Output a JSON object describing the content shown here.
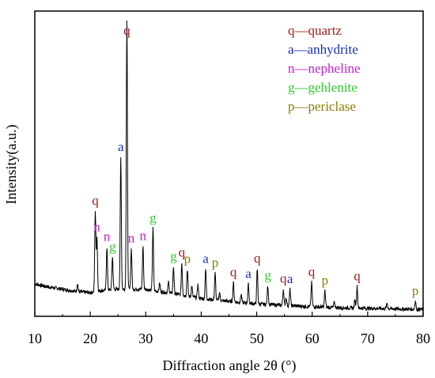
{
  "chart_data": {
    "type": "line",
    "title": "",
    "xlabel": "Diffraction angle 2θ (°)",
    "ylabel": "Intensity(a.u.)",
    "xlim": [
      10,
      80
    ],
    "ylim": [
      0,
      100
    ],
    "x_ticks": [
      10,
      20,
      30,
      40,
      50,
      60,
      70,
      80
    ],
    "x_tick_labels": [
      "10",
      "20",
      "30",
      "40",
      "50",
      "60",
      "70",
      "80"
    ],
    "grid": false,
    "legend_position": "top-right",
    "legend": [
      {
        "symbol": "q",
        "text": "q—quartz",
        "color": "#a0201a"
      },
      {
        "symbol": "a",
        "text": "a—anhydrite",
        "color": "#1a2db5"
      },
      {
        "symbol": "n",
        "text": "n—nepheline",
        "color": "#c21fc9"
      },
      {
        "symbol": "g",
        "text": "g—gehlenite",
        "color": "#2fcc2f"
      },
      {
        "symbol": "p",
        "text": "p—periclase",
        "color": "#8a7a00"
      }
    ],
    "background_intensity": [
      [
        10,
        11.5
      ],
      [
        12,
        10.5
      ],
      [
        15,
        9.5
      ],
      [
        18,
        8.5
      ],
      [
        20,
        8.2
      ],
      [
        22,
        9
      ],
      [
        25,
        9.5
      ],
      [
        28,
        9.5
      ],
      [
        30,
        9.5
      ],
      [
        33,
        8.5
      ],
      [
        36,
        7.5
      ],
      [
        40,
        6
      ],
      [
        45,
        5
      ],
      [
        50,
        4
      ],
      [
        55,
        3.5
      ],
      [
        60,
        3
      ],
      [
        65,
        2.6
      ],
      [
        70,
        2.4
      ],
      [
        75,
        2.2
      ],
      [
        80,
        2
      ]
    ],
    "peaks": [
      {
        "x": 20.9,
        "y": 30,
        "label": "q"
      },
      {
        "x": 21.2,
        "y": 20,
        "label": "n"
      },
      {
        "x": 23.0,
        "y": 16,
        "label": "n"
      },
      {
        "x": 24.0,
        "y": 12,
        "label": "g"
      },
      {
        "x": 25.5,
        "y": 49,
        "label": "a"
      },
      {
        "x": 26.6,
        "y": 100,
        "label": "q"
      },
      {
        "x": 27.4,
        "y": 15,
        "label": "n"
      },
      {
        "x": 29.5,
        "y": 16,
        "label": "n"
      },
      {
        "x": 31.3,
        "y": 23,
        "label": "g"
      },
      {
        "x": 35.0,
        "y": 10,
        "label": "g"
      },
      {
        "x": 36.5,
        "y": 12,
        "label": "q"
      },
      {
        "x": 37.5,
        "y": 10,
        "label": "p"
      },
      {
        "x": 40.8,
        "y": 11,
        "label": "a"
      },
      {
        "x": 42.5,
        "y": 10,
        "label": "p"
      },
      {
        "x": 45.8,
        "y": 7,
        "label": "q"
      },
      {
        "x": 48.5,
        "y": 7,
        "label": "a"
      },
      {
        "x": 50.1,
        "y": 13,
        "label": "q"
      },
      {
        "x": 52.0,
        "y": 7,
        "label": "g"
      },
      {
        "x": 54.8,
        "y": 6,
        "label": "q"
      },
      {
        "x": 56.0,
        "y": 6,
        "label": "a"
      },
      {
        "x": 59.9,
        "y": 9,
        "label": "q"
      },
      {
        "x": 62.3,
        "y": 6,
        "label": "p"
      },
      {
        "x": 68.1,
        "y": 8,
        "label": "q"
      },
      {
        "x": 78.6,
        "y": 3,
        "label": "p"
      }
    ],
    "minor_peaks": [
      {
        "x": 17.7,
        "y": 3
      },
      {
        "x": 32.5,
        "y": 3
      },
      {
        "x": 34.1,
        "y": 4
      },
      {
        "x": 38.3,
        "y": 4
      },
      {
        "x": 39.4,
        "y": 5
      },
      {
        "x": 43.3,
        "y": 3
      },
      {
        "x": 47.2,
        "y": 3
      },
      {
        "x": 55.3,
        "y": 3
      },
      {
        "x": 64.0,
        "y": 2
      },
      {
        "x": 67.7,
        "y": 3
      },
      {
        "x": 73.5,
        "y": 2
      }
    ]
  }
}
